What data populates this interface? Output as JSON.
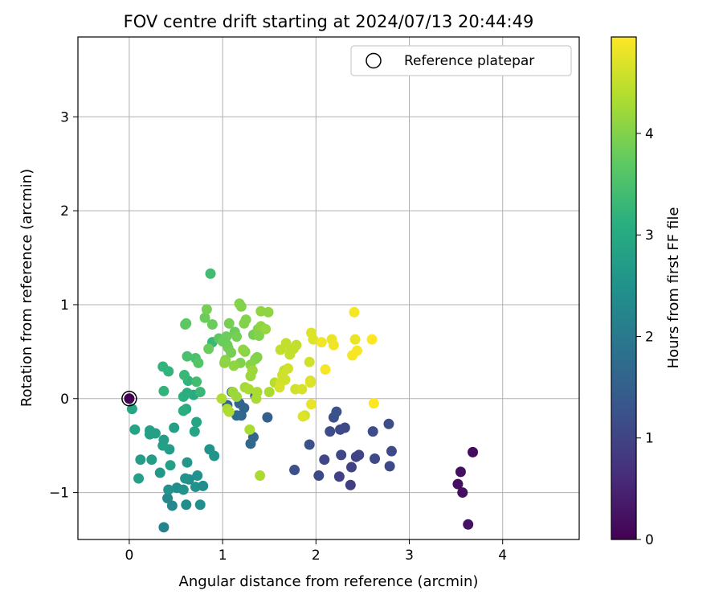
{
  "chart_data": {
    "type": "scatter",
    "title": "FOV centre drift starting at 2024/07/13 20:44:49",
    "xlabel": "Angular distance from reference (arcmin)",
    "ylabel": "Rotation from reference (arcmin)",
    "xlim": [
      -0.55,
      4.82
    ],
    "ylim": [
      -1.5,
      3.85
    ],
    "xticks": [
      0,
      1,
      2,
      3,
      4
    ],
    "xtick_labels": [
      "0",
      "1",
      "2",
      "3",
      "4"
    ],
    "yticks": [
      -1,
      0,
      1,
      2,
      3
    ],
    "ytick_labels": [
      "−1",
      "0",
      "1",
      "2",
      "3"
    ],
    "grid": true,
    "legend": {
      "placement": "top-right",
      "entries": [
        "Reference platepar"
      ]
    },
    "reference_point": {
      "name": "Reference platepar",
      "x": 0,
      "y": 0
    },
    "colorbar": {
      "label": "Hours from first FF file",
      "min": 0,
      "max": 4.95,
      "ticks": [
        0,
        1,
        2,
        3,
        4
      ],
      "tick_labels": [
        "0",
        "1",
        "2",
        "3",
        "4"
      ],
      "colormap": "viridis"
    },
    "points": [
      {
        "x": 0.0,
        "y": 0.0,
        "c": 0.0
      },
      {
        "x": 3.52,
        "y": -0.91,
        "c": 0.2
      },
      {
        "x": 3.55,
        "y": -0.78,
        "c": 0.2
      },
      {
        "x": 3.57,
        "y": -1.0,
        "c": 0.2
      },
      {
        "x": 3.68,
        "y": -0.57,
        "c": 0.15
      },
      {
        "x": 3.63,
        "y": -1.34,
        "c": 0.25
      },
      {
        "x": 2.37,
        "y": -0.92,
        "c": 0.9
      },
      {
        "x": 2.38,
        "y": -0.73,
        "c": 0.95
      },
      {
        "x": 2.43,
        "y": -0.62,
        "c": 1.0
      },
      {
        "x": 2.46,
        "y": -0.6,
        "c": 1.0
      },
      {
        "x": 2.25,
        "y": -0.83,
        "c": 0.95
      },
      {
        "x": 2.26,
        "y": -0.33,
        "c": 1.1
      },
      {
        "x": 2.31,
        "y": -0.31,
        "c": 1.1
      },
      {
        "x": 2.27,
        "y": -0.6,
        "c": 1.05
      },
      {
        "x": 2.19,
        "y": -0.2,
        "c": 1.2
      },
      {
        "x": 2.22,
        "y": -0.14,
        "c": 1.25
      },
      {
        "x": 2.15,
        "y": -0.35,
        "c": 1.15
      },
      {
        "x": 2.09,
        "y": -0.65,
        "c": 1.05
      },
      {
        "x": 2.03,
        "y": -0.82,
        "c": 1.1
      },
      {
        "x": 1.93,
        "y": -0.49,
        "c": 1.2
      },
      {
        "x": 1.77,
        "y": -0.76,
        "c": 1.2
      },
      {
        "x": 2.63,
        "y": -0.64,
        "c": 1.1
      },
      {
        "x": 2.61,
        "y": -0.35,
        "c": 1.15
      },
      {
        "x": 2.78,
        "y": -0.27,
        "c": 1.15
      },
      {
        "x": 2.79,
        "y": -0.72,
        "c": 1.1
      },
      {
        "x": 2.81,
        "y": -0.56,
        "c": 1.1
      },
      {
        "x": 1.48,
        "y": -0.2,
        "c": 1.5
      },
      {
        "x": 1.33,
        "y": -0.41,
        "c": 1.6
      },
      {
        "x": 1.3,
        "y": -0.48,
        "c": 1.65
      },
      {
        "x": 1.35,
        "y": 0.03,
        "c": 1.55
      },
      {
        "x": 1.2,
        "y": -0.18,
        "c": 1.6
      },
      {
        "x": 1.15,
        "y": -0.18,
        "c": 1.7
      },
      {
        "x": 1.1,
        "y": 0.07,
        "c": 1.5
      },
      {
        "x": 1.18,
        "y": -0.05,
        "c": 1.6
      },
      {
        "x": 1.23,
        "y": -0.1,
        "c": 1.6
      },
      {
        "x": 1.05,
        "y": -0.07,
        "c": 1.55
      },
      {
        "x": 0.37,
        "y": -1.37,
        "c": 2.2
      },
      {
        "x": 0.46,
        "y": -1.14,
        "c": 2.3
      },
      {
        "x": 0.41,
        "y": -1.06,
        "c": 2.3
      },
      {
        "x": 0.51,
        "y": -0.95,
        "c": 2.4
      },
      {
        "x": 0.61,
        "y": -1.13,
        "c": 2.4
      },
      {
        "x": 0.76,
        "y": -1.13,
        "c": 2.45
      },
      {
        "x": 0.42,
        "y": -0.97,
        "c": 2.5
      },
      {
        "x": 0.58,
        "y": -0.97,
        "c": 2.5
      },
      {
        "x": 0.64,
        "y": -0.86,
        "c": 2.4
      },
      {
        "x": 0.71,
        "y": -0.94,
        "c": 2.5
      },
      {
        "x": 0.79,
        "y": -0.93,
        "c": 2.4
      },
      {
        "x": 0.6,
        "y": -0.85,
        "c": 2.5
      },
      {
        "x": 0.73,
        "y": -0.82,
        "c": 2.5
      },
      {
        "x": 0.33,
        "y": -0.79,
        "c": 2.6
      },
      {
        "x": 0.62,
        "y": -0.68,
        "c": 2.6
      },
      {
        "x": 0.86,
        "y": -0.54,
        "c": 2.5
      },
      {
        "x": 0.91,
        "y": -0.61,
        "c": 2.55
      },
      {
        "x": 0.12,
        "y": -0.65,
        "c": 2.7
      },
      {
        "x": 0.24,
        "y": -0.65,
        "c": 2.7
      },
      {
        "x": 0.1,
        "y": -0.85,
        "c": 2.8
      },
      {
        "x": 0.44,
        "y": -0.71,
        "c": 2.8
      },
      {
        "x": 0.43,
        "y": -0.54,
        "c": 2.7
      },
      {
        "x": 0.36,
        "y": -0.5,
        "c": 2.8
      },
      {
        "x": 0.37,
        "y": -0.44,
        "c": 2.75
      },
      {
        "x": 0.22,
        "y": -0.38,
        "c": 2.8
      },
      {
        "x": 0.22,
        "y": -0.34,
        "c": 2.8
      },
      {
        "x": 0.28,
        "y": -0.37,
        "c": 2.8
      },
      {
        "x": 0.48,
        "y": -0.31,
        "c": 2.8
      },
      {
        "x": 0.7,
        "y": -0.35,
        "c": 2.9
      },
      {
        "x": 0.72,
        "y": -0.25,
        "c": 2.9
      },
      {
        "x": 0.06,
        "y": -0.33,
        "c": 2.85
      },
      {
        "x": 0.03,
        "y": -0.11,
        "c": 2.9
      },
      {
        "x": 0.61,
        "y": -0.11,
        "c": 3.0
      },
      {
        "x": 0.58,
        "y": -0.13,
        "c": 3.1
      },
      {
        "x": 0.69,
        "y": 0.04,
        "c": 3.0
      },
      {
        "x": 0.63,
        "y": 0.19,
        "c": 3.2
      },
      {
        "x": 0.37,
        "y": 0.08,
        "c": 3.2
      },
      {
        "x": 0.58,
        "y": 0.02,
        "c": 3.15
      },
      {
        "x": 0.62,
        "y": 0.06,
        "c": 3.1
      },
      {
        "x": 0.76,
        "y": 0.07,
        "c": 3.3
      },
      {
        "x": 0.36,
        "y": 0.34,
        "c": 3.2
      },
      {
        "x": 0.42,
        "y": 0.29,
        "c": 3.2
      },
      {
        "x": 0.89,
        "y": 0.6,
        "c": 3.3
      },
      {
        "x": 0.87,
        "y": 1.33,
        "c": 3.4
      },
      {
        "x": 0.59,
        "y": 0.25,
        "c": 3.3
      },
      {
        "x": 0.72,
        "y": 0.18,
        "c": 3.4
      },
      {
        "x": 0.62,
        "y": 0.45,
        "c": 3.5
      },
      {
        "x": 0.71,
        "y": 0.43,
        "c": 3.5
      },
      {
        "x": 0.74,
        "y": 0.38,
        "c": 3.6
      },
      {
        "x": 0.6,
        "y": 0.79,
        "c": 3.7
      },
      {
        "x": 0.61,
        "y": 0.8,
        "c": 3.7
      },
      {
        "x": 0.81,
        "y": 0.86,
        "c": 3.8
      },
      {
        "x": 0.83,
        "y": 0.95,
        "c": 3.9
      },
      {
        "x": 0.85,
        "y": 0.53,
        "c": 3.8
      },
      {
        "x": 0.89,
        "y": 0.79,
        "c": 3.8
      },
      {
        "x": 0.96,
        "y": 0.64,
        "c": 3.7
      },
      {
        "x": 1.0,
        "y": 0.61,
        "c": 3.8
      },
      {
        "x": 1.04,
        "y": 0.66,
        "c": 3.8
      },
      {
        "x": 1.05,
        "y": 0.57,
        "c": 3.8
      },
      {
        "x": 1.06,
        "y": 0.54,
        "c": 3.85
      },
      {
        "x": 1.09,
        "y": 0.49,
        "c": 3.9
      },
      {
        "x": 1.07,
        "y": 0.8,
        "c": 3.9
      },
      {
        "x": 1.13,
        "y": 0.71,
        "c": 3.8
      },
      {
        "x": 1.15,
        "y": 0.66,
        "c": 3.9
      },
      {
        "x": 1.18,
        "y": 1.01,
        "c": 4.0
      },
      {
        "x": 1.2,
        "y": 0.98,
        "c": 4.0
      },
      {
        "x": 1.23,
        "y": 0.8,
        "c": 4.0
      },
      {
        "x": 1.25,
        "y": 0.84,
        "c": 4.0
      },
      {
        "x": 1.33,
        "y": 0.68,
        "c": 3.9
      },
      {
        "x": 1.38,
        "y": 0.74,
        "c": 4.0
      },
      {
        "x": 1.39,
        "y": 0.67,
        "c": 4.0
      },
      {
        "x": 1.41,
        "y": 0.93,
        "c": 4.1
      },
      {
        "x": 1.49,
        "y": 0.92,
        "c": 4.1
      },
      {
        "x": 1.41,
        "y": 0.77,
        "c": 4.1
      },
      {
        "x": 1.46,
        "y": 0.74,
        "c": 4.15
      },
      {
        "x": 1.35,
        "y": 0.42,
        "c": 4.0
      },
      {
        "x": 1.37,
        "y": 0.44,
        "c": 4.0
      },
      {
        "x": 1.3,
        "y": 0.36,
        "c": 4.05
      },
      {
        "x": 1.24,
        "y": 0.5,
        "c": 4.05
      },
      {
        "x": 1.22,
        "y": 0.52,
        "c": 4.1
      },
      {
        "x": 1.19,
        "y": 0.38,
        "c": 4.0
      },
      {
        "x": 1.12,
        "y": 0.35,
        "c": 4.1
      },
      {
        "x": 1.03,
        "y": 0.41,
        "c": 4.0
      },
      {
        "x": 1.02,
        "y": 0.38,
        "c": 4.1
      },
      {
        "x": 1.3,
        "y": 0.24,
        "c": 4.2
      },
      {
        "x": 1.32,
        "y": 0.3,
        "c": 4.2
      },
      {
        "x": 1.11,
        "y": 0.07,
        "c": 4.2
      },
      {
        "x": 1.15,
        "y": 0.02,
        "c": 4.2
      },
      {
        "x": 1.24,
        "y": 0.12,
        "c": 4.25
      },
      {
        "x": 1.28,
        "y": 0.1,
        "c": 4.3
      },
      {
        "x": 1.36,
        "y": 0.0,
        "c": 4.3
      },
      {
        "x": 1.37,
        "y": 0.07,
        "c": 4.3
      },
      {
        "x": 1.4,
        "y": -0.82,
        "c": 4.3
      },
      {
        "x": 1.29,
        "y": -0.33,
        "c": 4.3
      },
      {
        "x": 0.99,
        "y": 0.0,
        "c": 4.35
      },
      {
        "x": 1.05,
        "y": -0.11,
        "c": 4.3
      },
      {
        "x": 1.07,
        "y": -0.14,
        "c": 4.35
      },
      {
        "x": 1.5,
        "y": 0.07,
        "c": 4.3
      },
      {
        "x": 1.56,
        "y": 0.17,
        "c": 4.4
      },
      {
        "x": 1.62,
        "y": 0.52,
        "c": 4.5
      },
      {
        "x": 1.68,
        "y": 0.59,
        "c": 4.5
      },
      {
        "x": 1.73,
        "y": 0.51,
        "c": 4.5
      },
      {
        "x": 1.76,
        "y": 0.53,
        "c": 4.5
      },
      {
        "x": 1.79,
        "y": 0.57,
        "c": 4.5
      },
      {
        "x": 1.72,
        "y": 0.47,
        "c": 4.5
      },
      {
        "x": 1.66,
        "y": 0.3,
        "c": 4.5
      },
      {
        "x": 1.7,
        "y": 0.32,
        "c": 4.6
      },
      {
        "x": 1.67,
        "y": 0.2,
        "c": 4.6
      },
      {
        "x": 1.64,
        "y": 0.25,
        "c": 4.6
      },
      {
        "x": 1.62,
        "y": 0.17,
        "c": 4.6
      },
      {
        "x": 1.61,
        "y": 0.12,
        "c": 4.65
      },
      {
        "x": 1.78,
        "y": 0.1,
        "c": 4.6
      },
      {
        "x": 1.85,
        "y": 0.1,
        "c": 4.65
      },
      {
        "x": 1.88,
        "y": -0.18,
        "c": 4.6
      },
      {
        "x": 1.86,
        "y": -0.19,
        "c": 4.7
      },
      {
        "x": 1.94,
        "y": 0.19,
        "c": 4.65
      },
      {
        "x": 1.94,
        "y": 0.17,
        "c": 4.7
      },
      {
        "x": 1.93,
        "y": 0.39,
        "c": 4.6
      },
      {
        "x": 1.95,
        "y": 0.7,
        "c": 4.7
      },
      {
        "x": 1.97,
        "y": 0.63,
        "c": 4.7
      },
      {
        "x": 1.95,
        "y": -0.06,
        "c": 4.8
      },
      {
        "x": 2.06,
        "y": 0.6,
        "c": 4.85
      },
      {
        "x": 2.1,
        "y": 0.31,
        "c": 4.9
      },
      {
        "x": 2.17,
        "y": 0.63,
        "c": 4.8
      },
      {
        "x": 2.19,
        "y": 0.57,
        "c": 4.85
      },
      {
        "x": 2.39,
        "y": 0.46,
        "c": 4.9
      },
      {
        "x": 2.44,
        "y": 0.51,
        "c": 4.9
      },
      {
        "x": 2.42,
        "y": 0.63,
        "c": 4.8
      },
      {
        "x": 2.41,
        "y": 0.92,
        "c": 4.9
      },
      {
        "x": 2.6,
        "y": 0.63,
        "c": 4.95
      },
      {
        "x": 2.62,
        "y": -0.05,
        "c": 4.95
      }
    ]
  }
}
